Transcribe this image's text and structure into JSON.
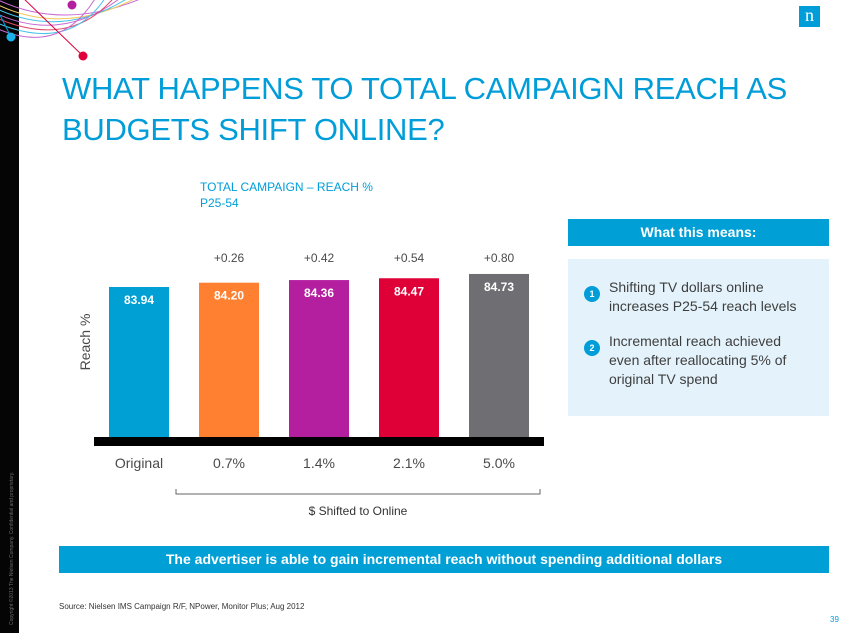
{
  "slide": {
    "title": "WHAT HAPPENS TO TOTAL CAMPAIGN REACH AS BUDGETS SHIFT ONLINE?",
    "logo_letter": "n",
    "copyright": "Copyright ©2013 The Nielsen Company. Confidential and proprietary.",
    "page_number": "39",
    "source": "Source:  Nielsen IMS Campaign R/F, NPower, Monitor Plus; Aug 2012",
    "banner": "The advertiser is able to gain incremental reach without spending additional dollars",
    "brand_color": "#009dd9"
  },
  "sidebar_panel": {
    "header": "What this means:",
    "items": [
      {
        "number": "1",
        "text": "Shifting TV dollars online increases P25-54 reach levels"
      },
      {
        "number": "2",
        "text": "Incremental reach achieved even after reallocating 5% of original TV spend"
      }
    ]
  },
  "chart_data": {
    "type": "bar",
    "title": "TOTAL CAMPAIGN – REACH %",
    "subtitle": "P25-54",
    "categories": [
      "Original",
      "0.7%",
      "1.4%",
      "2.1%",
      "5.0%"
    ],
    "values": [
      83.94,
      84.2,
      84.36,
      84.47,
      84.73
    ],
    "value_labels": [
      "83.94",
      "84.20",
      "84.36",
      "84.47",
      "84.73"
    ],
    "delta_labels": [
      "",
      "+0.26",
      "+0.42",
      "+0.54",
      "+0.80"
    ],
    "colors": [
      "#00a0d4",
      "#ff8030",
      "#b41fa0",
      "#df0037",
      "#6f6f73"
    ],
    "xlabel": "$ Shifted to Online",
    "ylabel": "Reach %",
    "ylim": [
      0,
      100
    ],
    "y_axis_truncated": true,
    "grid": false,
    "legend": "none"
  }
}
